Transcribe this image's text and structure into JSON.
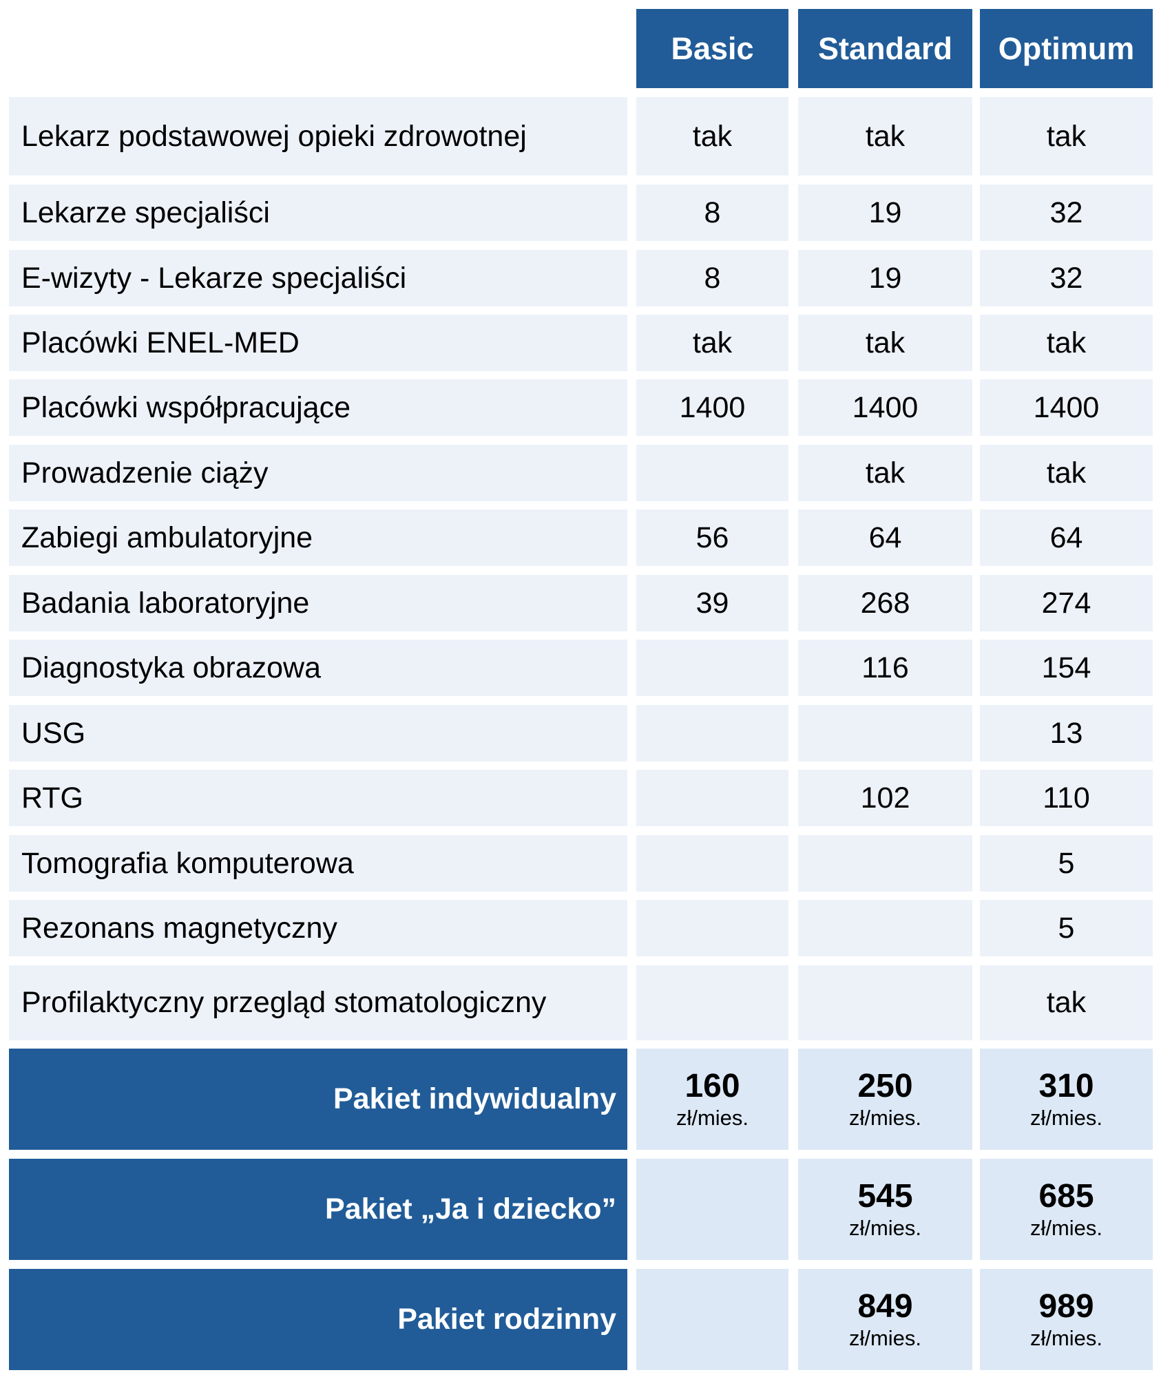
{
  "columns": [
    "Basic",
    "Standard",
    "Optimum"
  ],
  "features": [
    {
      "label": "Lekarz podstawowej opieki zdrowotnej",
      "values": [
        "tak",
        "tak",
        "tak"
      ]
    },
    {
      "label": "Lekarze specjaliści",
      "values": [
        "8",
        "19",
        "32"
      ]
    },
    {
      "label": "E-wizyty - Lekarze specjaliści",
      "values": [
        "8",
        "19",
        "32"
      ]
    },
    {
      "label": "Placówki ENEL-MED",
      "values": [
        "tak",
        "tak",
        "tak"
      ]
    },
    {
      "label": "Placówki współpracujące",
      "values": [
        "1400",
        "1400",
        "1400"
      ]
    },
    {
      "label": "Prowadzenie ciąży",
      "values": [
        "",
        "tak",
        "tak"
      ]
    },
    {
      "label": "Zabiegi ambulatoryjne",
      "values": [
        "56",
        "64",
        "64"
      ]
    },
    {
      "label": "Badania laboratoryjne",
      "values": [
        "39",
        "268",
        "274"
      ]
    },
    {
      "label": "Diagnostyka obrazowa",
      "values": [
        "",
        "116",
        "154"
      ]
    },
    {
      "label": "USG",
      "values": [
        "",
        "",
        "13"
      ]
    },
    {
      "label": "RTG",
      "values": [
        "",
        "102",
        "110"
      ]
    },
    {
      "label": "Tomografia komputerowa",
      "values": [
        "",
        "",
        "5"
      ]
    },
    {
      "label": "Rezonans magnetyczny",
      "values": [
        "",
        "",
        "5"
      ]
    },
    {
      "label": "Profilaktyczny przegląd stomatologiczny",
      "values": [
        "",
        "",
        "tak"
      ]
    }
  ],
  "price_unit": "zł/mies.",
  "packages": [
    {
      "label": "Pakiet indywidualny",
      "prices": [
        "160",
        "250",
        "310"
      ]
    },
    {
      "label": "Pakiet „Ja i dziecko”",
      "prices": [
        "",
        "545",
        "685"
      ]
    },
    {
      "label": "Pakiet rodzinny",
      "prices": [
        "",
        "849",
        "989"
      ]
    }
  ],
  "colors": {
    "header": "#215c98",
    "row": "#edf2f9",
    "price_cell": "#dce8f5"
  }
}
